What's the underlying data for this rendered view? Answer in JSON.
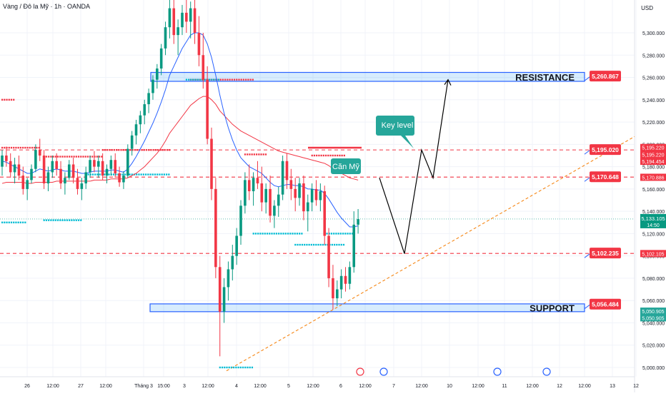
{
  "header": {
    "symbol_title": "Vàng / Đô la Mỹ · 1h · OANDA",
    "currency": "USD"
  },
  "chart_data": {
    "type": "candlestick",
    "ylim": [
      4995,
      5325
    ],
    "y_ticks": [
      5000,
      5020,
      5040,
      5060,
      5080,
      5100,
      5120,
      5140,
      5160,
      5180,
      5200,
      5220,
      5240,
      5260,
      5280,
      5300
    ],
    "y_tick_labels": [
      "5,000.000",
      "5,020.000",
      "5,040.000",
      "5,060.000",
      "5,080.000",
      "5,100.000",
      "5,120.000",
      "5,140.000",
      "5,160.000",
      "5,180.000",
      "5,200.000",
      "5,220.000",
      "5,240.000",
      "5,260.000",
      "5,280.000",
      "5,300.000"
    ],
    "x_tick_labels": [
      "26",
      "12:00",
      "27",
      "12:00",
      "Tháng 3",
      "15:00",
      "3",
      "12:00",
      "4",
      "12:00",
      "5",
      "12:00",
      "6",
      "12:00",
      "7",
      "12:00",
      "10",
      "12:00",
      "11",
      "12:00",
      "12",
      "12:00",
      "13",
      "12"
    ],
    "price_tags": [
      {
        "label": "5,260.867",
        "value": 5260.867,
        "color": "#f23645"
      },
      {
        "label": "5,195.020",
        "value": 5195.02,
        "color": "#f23645"
      },
      {
        "label": "5,170.648",
        "value": 5170.648,
        "color": "#f23645"
      },
      {
        "label": "5,102.235",
        "value": 5102.235,
        "color": "#f23645"
      },
      {
        "label": "5,056.484",
        "value": 5056.484,
        "color": "#f23645"
      }
    ],
    "axis_tags": [
      {
        "label": "5,195.220",
        "value": 5197.2,
        "color": "#f23645"
      },
      {
        "label": "5,195.220",
        "value": 5191.0,
        "color": "#f23645"
      },
      {
        "label": "5,194.454",
        "value": 5184.8,
        "color": "#f23645"
      },
      {
        "label": "5,170.886",
        "value": 5170.5,
        "color": "#f23645"
      },
      {
        "label": "5,102.105",
        "value": 5102.1,
        "color": "#f23645"
      },
      {
        "label": "5,050.905",
        "value": 5050.5,
        "color": "#26a69a"
      },
      {
        "label": "5,050.905",
        "value": 5044.5,
        "color": "#26a69a"
      }
    ],
    "current_price": {
      "label": "5,133.105",
      "countdown": "14:50",
      "value": 5133.105,
      "color": "#089981"
    },
    "zones": [
      {
        "name": "RESISTANCE",
        "top": 5264.5,
        "bottom": 5256.5
      },
      {
        "name": "SUPPORT",
        "top": 5057,
        "bottom": 5050
      }
    ],
    "dashed_levels": [
      5195.02,
      5170.648,
      5102.235
    ],
    "trendline": {
      "from": [
        0,
        4997
      ],
      "to": [
        1,
        5207
      ]
    },
    "annotations": {
      "key_level": "Key level",
      "can_my": "Căn Mỹ"
    },
    "projection_path": [
      5170,
      5102,
      5195,
      5170,
      5258
    ],
    "candles": [
      [
        5180,
        5195,
        5172,
        5190
      ],
      [
        5190,
        5198,
        5180,
        5185
      ],
      [
        5185,
        5192,
        5170,
        5175
      ],
      [
        5175,
        5188,
        5165,
        5182
      ],
      [
        5182,
        5190,
        5168,
        5172
      ],
      [
        5172,
        5180,
        5155,
        5160
      ],
      [
        5160,
        5170,
        5150,
        5168
      ],
      [
        5168,
        5182,
        5165,
        5178
      ],
      [
        5178,
        5200,
        5175,
        5195
      ],
      [
        5195,
        5205,
        5185,
        5190
      ],
      [
        5190,
        5195,
        5160,
        5165
      ],
      [
        5165,
        5180,
        5158,
        5175
      ],
      [
        5175,
        5190,
        5170,
        5185
      ],
      [
        5185,
        5192,
        5172,
        5178
      ],
      [
        5178,
        5185,
        5160,
        5165
      ],
      [
        5165,
        5175,
        5155,
        5170
      ],
      [
        5170,
        5186,
        5168,
        5182
      ],
      [
        5182,
        5188,
        5165,
        5170
      ],
      [
        5170,
        5178,
        5155,
        5160
      ],
      [
        5160,
        5170,
        5150,
        5165
      ],
      [
        5165,
        5180,
        5160,
        5175
      ],
      [
        5175,
        5190,
        5170,
        5186
      ],
      [
        5186,
        5194,
        5175,
        5180
      ],
      [
        5180,
        5190,
        5170,
        5185
      ],
      [
        5185,
        5192,
        5168,
        5172
      ],
      [
        5172,
        5182,
        5165,
        5178
      ],
      [
        5178,
        5190,
        5172,
        5186
      ],
      [
        5186,
        5192,
        5170,
        5174
      ],
      [
        5174,
        5180,
        5162,
        5166
      ],
      [
        5166,
        5176,
        5160,
        5172
      ],
      [
        5172,
        5200,
        5170,
        5196
      ],
      [
        5196,
        5212,
        5190,
        5208
      ],
      [
        5208,
        5222,
        5200,
        5218
      ],
      [
        5218,
        5230,
        5210,
        5226
      ],
      [
        5226,
        5240,
        5218,
        5236
      ],
      [
        5236,
        5250,
        5228,
        5246
      ],
      [
        5246,
        5262,
        5240,
        5258
      ],
      [
        5258,
        5272,
        5250,
        5268
      ],
      [
        5268,
        5290,
        5262,
        5286
      ],
      [
        5286,
        5310,
        5280,
        5305
      ],
      [
        5305,
        5330,
        5295,
        5322
      ],
      [
        5322,
        5330,
        5290,
        5298
      ],
      [
        5298,
        5312,
        5280,
        5305
      ],
      [
        5305,
        5325,
        5298,
        5318
      ],
      [
        5318,
        5330,
        5300,
        5310
      ],
      [
        5310,
        5328,
        5295,
        5322
      ],
      [
        5322,
        5330,
        5290,
        5300
      ],
      [
        5300,
        5315,
        5270,
        5280
      ],
      [
        5280,
        5300,
        5250,
        5258
      ],
      [
        5258,
        5270,
        5200,
        5205
      ],
      [
        5205,
        5215,
        5150,
        5160
      ],
      [
        5160,
        5170,
        5080,
        5090
      ],
      [
        5090,
        5100,
        5010,
        5050
      ],
      [
        5050,
        5080,
        5040,
        5072
      ],
      [
        5072,
        5095,
        5060,
        5088
      ],
      [
        5088,
        5110,
        5078,
        5100
      ],
      [
        5100,
        5125,
        5092,
        5118
      ],
      [
        5118,
        5150,
        5110,
        5145
      ],
      [
        5145,
        5175,
        5138,
        5168
      ],
      [
        5168,
        5182,
        5150,
        5158
      ],
      [
        5158,
        5175,
        5145,
        5170
      ],
      [
        5170,
        5185,
        5160,
        5165
      ],
      [
        5165,
        5180,
        5140,
        5148
      ],
      [
        5148,
        5165,
        5138,
        5160
      ],
      [
        5160,
        5172,
        5130,
        5136
      ],
      [
        5136,
        5150,
        5125,
        5145
      ],
      [
        5145,
        5162,
        5135,
        5155
      ],
      [
        5155,
        5190,
        5150,
        5185
      ],
      [
        5185,
        5192,
        5160,
        5168
      ],
      [
        5168,
        5178,
        5150,
        5160
      ],
      [
        5160,
        5170,
        5140,
        5152
      ],
      [
        5152,
        5170,
        5145,
        5165
      ],
      [
        5165,
        5172,
        5132,
        5140
      ],
      [
        5140,
        5155,
        5122,
        5148
      ],
      [
        5148,
        5165,
        5140,
        5160
      ],
      [
        5160,
        5168,
        5145,
        5150
      ],
      [
        5150,
        5165,
        5140,
        5158
      ],
      [
        5158,
        5163,
        5110,
        5118
      ],
      [
        5118,
        5125,
        5072,
        5080
      ],
      [
        5080,
        5092,
        5052,
        5062
      ],
      [
        5062,
        5078,
        5055,
        5070
      ],
      [
        5070,
        5088,
        5062,
        5082
      ],
      [
        5082,
        5090,
        5068,
        5075
      ],
      [
        5075,
        5095,
        5070,
        5090
      ],
      [
        5090,
        5140,
        5085,
        5128
      ],
      [
        5128,
        5142,
        5120,
        5133
      ]
    ],
    "ema_fast": [
      5185,
      5184,
      5182,
      5180,
      5178,
      5176,
      5174,
      5174,
      5176,
      5178,
      5177,
      5176,
      5177,
      5178,
      5177,
      5176,
      5176,
      5176,
      5175,
      5174,
      5174,
      5175,
      5176,
      5176,
      5176,
      5176,
      5177,
      5177,
      5176,
      5175,
      5178,
      5183,
      5189,
      5196,
      5203,
      5211,
      5219,
      5228,
      5238,
      5249,
      5262,
      5270,
      5278,
      5286,
      5292,
      5298,
      5300,
      5300,
      5298,
      5290,
      5278,
      5262,
      5244,
      5228,
      5215,
      5204,
      5195,
      5188,
      5184,
      5180,
      5178,
      5176,
      5174,
      5170,
      5166,
      5163,
      5162,
      5163,
      5164,
      5164,
      5163,
      5163,
      5162,
      5160,
      5160,
      5159,
      5159,
      5156,
      5151,
      5145,
      5139,
      5134,
      5130,
      5126,
      5126,
      5127
    ],
    "ema_slow": [
      5165,
      5166,
      5166,
      5166,
      5166,
      5166,
      5165,
      5165,
      5166,
      5166,
      5166,
      5166,
      5166,
      5167,
      5167,
      5167,
      5167,
      5167,
      5167,
      5167,
      5167,
      5167,
      5168,
      5168,
      5168,
      5168,
      5169,
      5169,
      5169,
      5169,
      5170,
      5172,
      5174,
      5177,
      5180,
      5184,
      5188,
      5192,
      5197,
      5203,
      5210,
      5215,
      5220,
      5225,
      5230,
      5235,
      5238,
      5241,
      5243,
      5243,
      5240,
      5236,
      5230,
      5226,
      5222,
      5218,
      5215,
      5212,
      5210,
      5208,
      5206,
      5204,
      5202,
      5200,
      5198,
      5196,
      5194,
      5193,
      5192,
      5191,
      5190,
      5189,
      5188,
      5187,
      5186,
      5185,
      5184,
      5183,
      5181,
      5178,
      5176,
      5174,
      5172,
      5170,
      5169,
      5168
    ],
    "resistance_dots": [
      {
        "from": 0,
        "to": 9,
        "value": 5197
      },
      {
        "from": 10,
        "to": 24,
        "value": 5189
      },
      {
        "from": 24,
        "to": 40,
        "value": 5195
      },
      {
        "from": 45,
        "to": 60,
        "value": 5258
      },
      {
        "from": 74,
        "to": 82,
        "value": 5190
      },
      {
        "from": 58,
        "to": 63,
        "value": 5191
      },
      {
        "from": 0,
        "to": 3,
        "value": 5240
      }
    ],
    "support_dots": [
      {
        "from": 0,
        "to": 6,
        "value": 5130
      },
      {
        "from": 10,
        "to": 19,
        "value": 5132
      },
      {
        "from": 20,
        "to": 40,
        "value": 5173
      },
      {
        "from": 44,
        "to": 52,
        "value": 5258
      },
      {
        "from": 60,
        "to": 72,
        "value": 5120
      },
      {
        "from": 70,
        "to": 82,
        "value": 5110
      },
      {
        "from": 77,
        "to": 84,
        "value": 5120
      },
      {
        "from": 52,
        "to": 60,
        "value": 5000
      }
    ]
  }
}
